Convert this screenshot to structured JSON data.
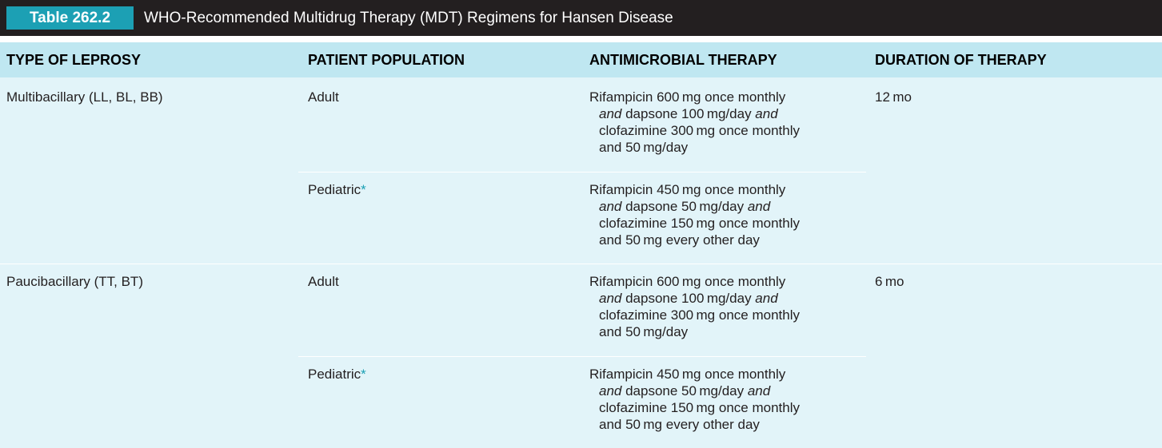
{
  "title": {
    "label": "Table 262.2",
    "text": "WHO-Recommended Multidrug Therapy (MDT) Regimens for Hansen Disease"
  },
  "headers": [
    "TYPE OF LEPROSY",
    "PATIENT POPULATION",
    "ANTIMICROBIAL THERAPY",
    "DURATION OF THERAPY"
  ],
  "groups": [
    {
      "type": "Multibacillary (LL, BL, BB)",
      "duration": "12 mo",
      "rows": [
        {
          "population": "Adult",
          "therapy": {
            "l1": "Rifampicin 600 mg once monthly",
            "and1": "and",
            "mid2": " dapsone 100 mg/day ",
            "and2": "and",
            "l3": "clofazimine 300 mg once monthly",
            "l4": "and 50 mg/day"
          }
        },
        {
          "population": "Pediatric",
          "marker": "*",
          "therapy": {
            "l1": "Rifampicin 450 mg once monthly",
            "and1": "and",
            "mid2": " dapsone 50 mg/day ",
            "and2": "and",
            "l3": "clofazimine 150 mg once monthly",
            "l4": "and 50 mg every other day"
          }
        }
      ]
    },
    {
      "type": "Paucibacillary (TT, BT)",
      "duration": "6 mo",
      "rows": [
        {
          "population": "Adult",
          "therapy": {
            "l1": "Rifampicin 600 mg once monthly",
            "and1": "and",
            "mid2": " dapsone 100 mg/day ",
            "and2": "and",
            "l3": "clofazimine 300 mg once monthly",
            "l4": "and 50 mg/day"
          }
        },
        {
          "population": "Pediatric",
          "marker": "*",
          "therapy": {
            "l1": "Rifampicin 450 mg once monthly",
            "and1": "and",
            "mid2": " dapsone 50 mg/day ",
            "and2": "and",
            "l3": "clofazimine 150 mg once monthly",
            "l4": "and 50 mg every other day"
          }
        }
      ]
    }
  ],
  "colors": {
    "title_bar": "#231f20",
    "title_label": "#1ca0b4",
    "header_row": "#bfe7f1",
    "body": "#e2f4f9"
  }
}
